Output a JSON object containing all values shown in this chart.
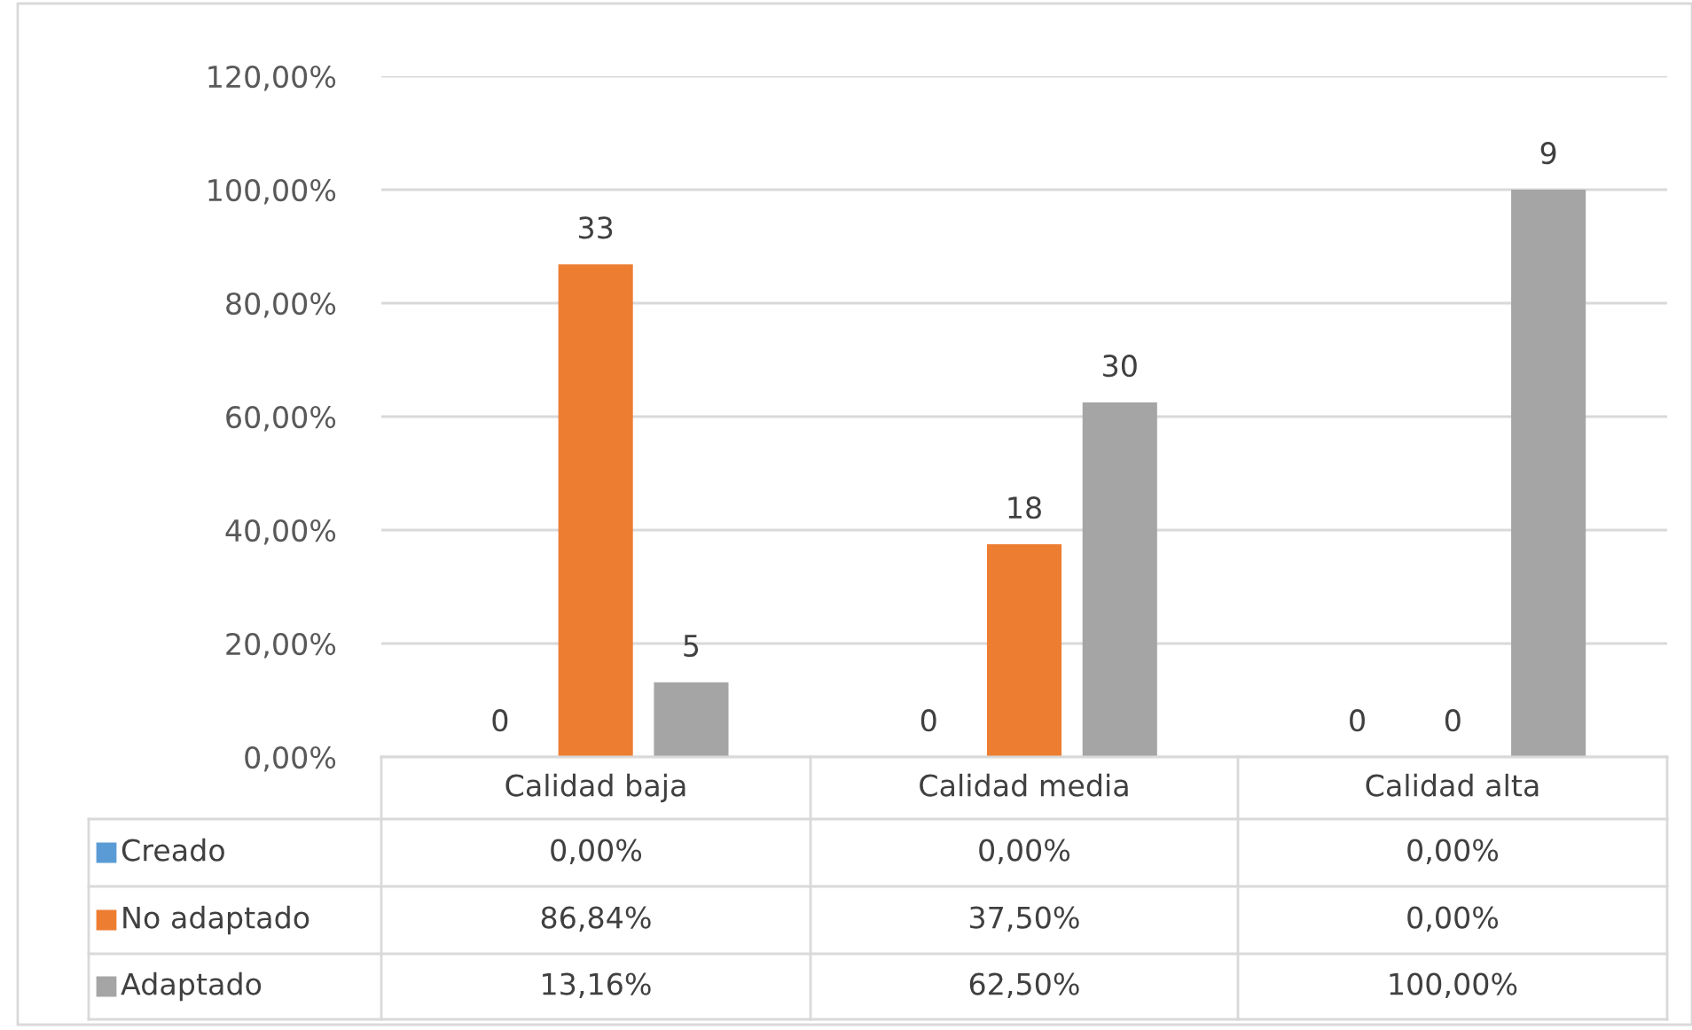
{
  "chart_data": {
    "type": "bar",
    "categories": [
      "Calidad baja",
      "Calidad media",
      "Calidad alta"
    ],
    "series": [
      {
        "name": "Creado",
        "color": "#5b9bd5",
        "values": [
          0,
          0,
          0
        ],
        "value_labels": [
          "0,00%",
          "0,00%",
          "0,00%"
        ]
      },
      {
        "name": "No adaptado",
        "color": "#ed7d31",
        "values": [
          86.84,
          37.5,
          0
        ],
        "value_labels": [
          "86,84%",
          "37,50%",
          "0,00%"
        ]
      },
      {
        "name": "Adaptado",
        "color": "#a5a5a5",
        "values": [
          13.16,
          62.5,
          100
        ],
        "value_labels": [
          "13,16%",
          "62,50%",
          "100,00%"
        ]
      }
    ],
    "annotations": [
      "0",
      "0",
      "0",
      "33",
      "18",
      "0",
      "5",
      "30",
      "9"
    ],
    "ylim": [
      0,
      120
    ],
    "yticks": [
      {
        "value": 0,
        "label": "0,00%"
      },
      {
        "value": 20,
        "label": "20,00%"
      },
      {
        "value": 40,
        "label": "40,00%"
      },
      {
        "value": 60,
        "label": "60,00%"
      },
      {
        "value": 80,
        "label": "80,00%"
      },
      {
        "value": 100,
        "label": "100,00%"
      },
      {
        "value": 120,
        "label": "120,00%"
      }
    ],
    "grid": "y",
    "legend": "bottom left"
  }
}
